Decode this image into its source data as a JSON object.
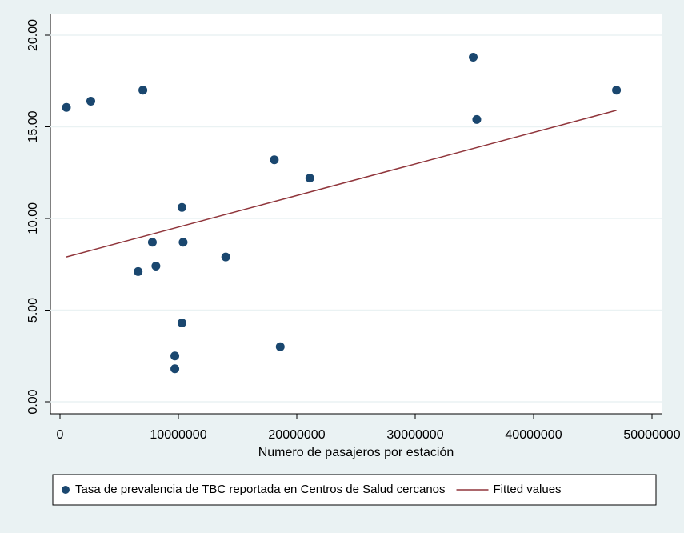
{
  "chart_data": {
    "type": "scatter",
    "x_label": "Numero de pasajeros por estación",
    "xlim": [
      0,
      50000000
    ],
    "xticks": [
      0,
      10000000,
      20000000,
      30000000,
      40000000,
      50000000
    ],
    "ylim": [
      0,
      20
    ],
    "yticks": [
      {
        "value": 0,
        "label": "0.00"
      },
      {
        "value": 5,
        "label": "5.00"
      },
      {
        "value": 10,
        "label": "10.00"
      },
      {
        "value": 15,
        "label": "15.00"
      },
      {
        "value": 20,
        "label": "20.00"
      }
    ],
    "grid": true,
    "legend": "bottom",
    "series": [
      {
        "name": "Tasa de prevalencia de TBC reportada en Centros de Salud cercanos",
        "type": "scatter",
        "color": "#1a476f",
        "x": [
          540000,
          2600000,
          7000000,
          34900000,
          47000000,
          35200000,
          18100000,
          21100000,
          10300000,
          7800000,
          10400000,
          8100000,
          6600000,
          14000000,
          10300000,
          9700000,
          9700000,
          18600000
        ],
        "values": [
          16.06,
          16.4,
          17.0,
          18.8,
          17.0,
          15.4,
          13.2,
          12.2,
          10.6,
          8.7,
          8.7,
          7.4,
          7.1,
          7.9,
          4.3,
          2.5,
          1.8,
          3.0
        ]
      },
      {
        "name": "Fitted values",
        "type": "line",
        "color": "#90353b",
        "x": [
          540000,
          47000000
        ],
        "values": [
          7.9,
          15.9
        ]
      }
    ]
  }
}
